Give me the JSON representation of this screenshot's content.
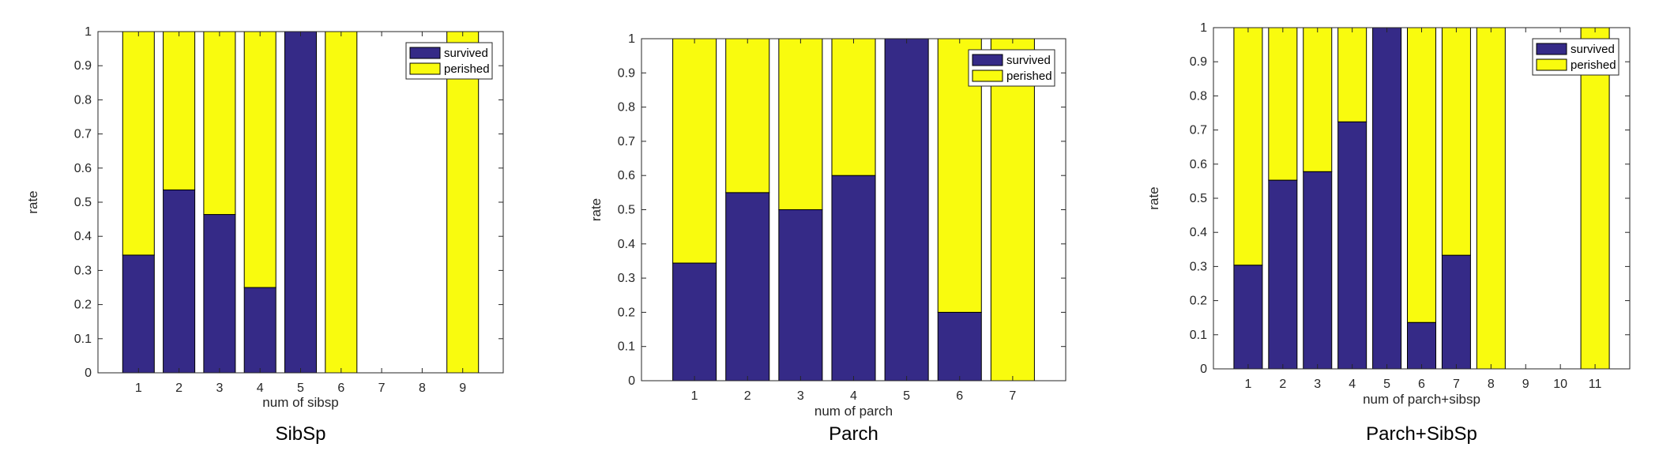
{
  "colors": {
    "survived": "#352a87",
    "perished": "#f9fb0e",
    "axis": "#262626"
  },
  "chart_data": [
    {
      "type": "bar",
      "stacked": true,
      "caption": "SibSp",
      "xlabel": "num of sibsp",
      "ylabel": "rate",
      "ylim": [
        0,
        1
      ],
      "yticks": [
        "0",
        "0.1",
        "0.2",
        "0.3",
        "0.4",
        "0.5",
        "0.6",
        "0.7",
        "0.8",
        "0.9",
        "1"
      ],
      "categories": [
        "1",
        "2",
        "3",
        "4",
        "5",
        "6",
        "7",
        "8",
        "9"
      ],
      "legend": {
        "location": "top-right",
        "entries": [
          "survived",
          "perished"
        ]
      },
      "series": [
        {
          "name": "survived",
          "values": [
            0.345,
            0.536,
            0.464,
            0.25,
            1.0,
            0,
            0,
            0,
            0
          ]
        },
        {
          "name": "perished",
          "values": [
            0.655,
            0.464,
            0.536,
            0.75,
            0,
            1.0,
            0,
            0,
            1.0
          ]
        }
      ]
    },
    {
      "type": "bar",
      "stacked": true,
      "caption": "Parch",
      "xlabel": "num of parch",
      "ylabel": "rate",
      "ylim": [
        0,
        1
      ],
      "yticks": [
        "0",
        "0.1",
        "0.2",
        "0.3",
        "0.4",
        "0.5",
        "0.6",
        "0.7",
        "0.8",
        "0.9",
        "1"
      ],
      "categories": [
        "1",
        "2",
        "3",
        "4",
        "5",
        "6",
        "7"
      ],
      "legend": {
        "location": "top-right",
        "entries": [
          "survived",
          "perished"
        ]
      },
      "series": [
        {
          "name": "survived",
          "values": [
            0.344,
            0.55,
            0.5,
            0.6,
            1.0,
            0.2,
            0
          ]
        },
        {
          "name": "perished",
          "values": [
            0.656,
            0.45,
            0.5,
            0.4,
            0,
            0.8,
            1.0
          ]
        }
      ]
    },
    {
      "type": "bar",
      "stacked": true,
      "caption": "Parch+SibSp",
      "xlabel": "num of parch+sibsp",
      "ylabel": "rate",
      "ylim": [
        0,
        1
      ],
      "yticks": [
        "0",
        "0.1",
        "0.2",
        "0.3",
        "0.4",
        "0.5",
        "0.6",
        "0.7",
        "0.8",
        "0.9",
        "1"
      ],
      "categories": [
        "1",
        "2",
        "3",
        "4",
        "5",
        "6",
        "7",
        "8",
        "9",
        "10",
        "11"
      ],
      "legend": {
        "location": "top-right",
        "entries": [
          "survived",
          "perished"
        ]
      },
      "series": [
        {
          "name": "survived",
          "values": [
            0.304,
            0.553,
            0.578,
            0.724,
            1.0,
            0.136,
            0.333,
            0,
            0,
            0,
            0
          ]
        },
        {
          "name": "perished",
          "values": [
            0.696,
            0.447,
            0.422,
            0.276,
            0,
            0.864,
            0.667,
            1.0,
            0,
            0,
            1.0
          ]
        }
      ]
    }
  ]
}
